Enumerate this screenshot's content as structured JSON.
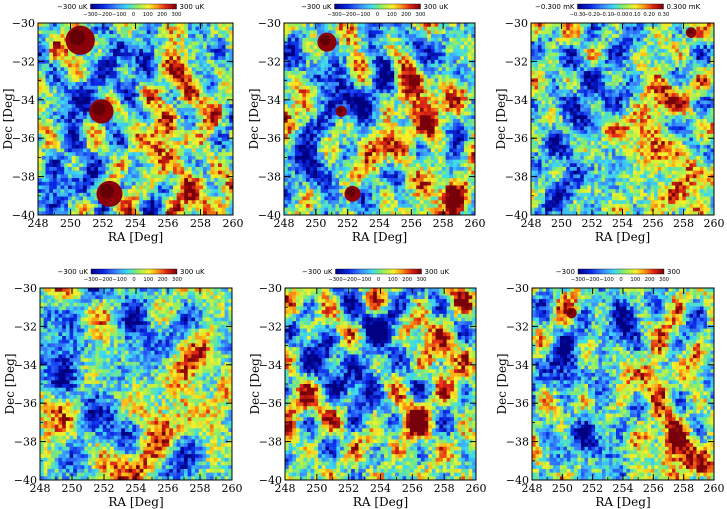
{
  "chart_data": [
    {
      "type": "heatmap",
      "panel": "top-left",
      "xlabel": "RA [Deg]",
      "ylabel": "Dec [Deg]",
      "xlim": [
        248,
        260
      ],
      "ylim": [
        -40,
        -30
      ],
      "xticks": [
        "248",
        "250",
        "252",
        "254",
        "256",
        "258",
        "260"
      ],
      "yticks": [
        "-30",
        "-32",
        "-34",
        "-36",
        "-38",
        "-40"
      ],
      "colorbar": {
        "min_label": "−300 uK",
        "max_label": "300 uK",
        "ticks": [
          "−300",
          "−200",
          "−100",
          "0",
          "100",
          "200",
          "300"
        ],
        "range": [
          -300,
          300
        ],
        "unit": "uK"
      },
      "point_sources": [
        {
          "ra": 250.6,
          "dec": -30.9,
          "size": 0.9
        },
        {
          "ra": 251.9,
          "dec": -34.6,
          "size": 0.75
        },
        {
          "ra": 252.4,
          "dec": -38.9,
          "size": 0.8
        }
      ],
      "seed": 11,
      "cold_regions": [
        [
          251,
          -34
        ],
        [
          254,
          -32
        ],
        [
          250,
          -38
        ]
      ],
      "hot_regions": [
        [
          256,
          -36
        ],
        [
          258,
          -39
        ],
        [
          256,
          -33
        ]
      ]
    },
    {
      "type": "heatmap",
      "panel": "top-middle",
      "xlabel": "RA [Deg]",
      "ylabel": "Dec [Deg]",
      "xlim": [
        248,
        260
      ],
      "ylim": [
        -40,
        -30
      ],
      "xticks": [
        "248",
        "250",
        "252",
        "254",
        "256",
        "258",
        "260"
      ],
      "yticks": [
        "-30",
        "-32",
        "-34",
        "-36",
        "-38",
        "-40"
      ],
      "colorbar": {
        "min_label": "−300 uK",
        "max_label": "300 uK",
        "ticks": [
          "−300",
          "−200",
          "−100",
          "0",
          "100",
          "200",
          "300"
        ],
        "range": [
          -300,
          300
        ],
        "unit": "uK"
      },
      "point_sources": [
        {
          "ra": 250.7,
          "dec": -31.0,
          "size": 0.6
        },
        {
          "ra": 251.6,
          "dec": -34.6,
          "size": 0.35
        },
        {
          "ra": 252.3,
          "dec": -38.9,
          "size": 0.5
        }
      ],
      "seed": 23,
      "cold_regions": [
        [
          251,
          -34
        ],
        [
          254,
          -32
        ],
        [
          250,
          -38
        ]
      ],
      "hot_regions": [
        [
          256,
          -36
        ],
        [
          258,
          -39
        ],
        [
          256,
          -33
        ]
      ]
    },
    {
      "type": "heatmap",
      "panel": "top-right",
      "xlabel": "RA [Deg]",
      "ylabel": "Dec [Deg]",
      "xlim": [
        248,
        260
      ],
      "ylim": [
        -40,
        -30
      ],
      "xticks": [
        "248",
        "250",
        "252",
        "254",
        "256",
        "258",
        "260"
      ],
      "yticks": [
        "-30",
        "-32",
        "-34",
        "-36",
        "-38",
        "-40"
      ],
      "colorbar": {
        "min_label": "−0.300 mK",
        "max_label": "0.300 mK",
        "ticks": [
          "−0.30",
          "−0.20",
          "−0.10",
          "−0.00",
          "0.10",
          "0.20",
          "0.30"
        ],
        "range": [
          -0.3,
          0.3
        ],
        "unit": "mK"
      },
      "point_sources": [
        {
          "ra": 258.5,
          "dec": -30.5,
          "size": 0.35
        }
      ],
      "seed": 37,
      "cold_regions": [
        [
          251,
          -34
        ],
        [
          254,
          -32
        ],
        [
          250,
          -38
        ]
      ],
      "hot_regions": [
        [
          256,
          -36
        ],
        [
          258,
          -39
        ],
        [
          256,
          -33
        ]
      ]
    },
    {
      "type": "heatmap",
      "panel": "bottom-left",
      "xlabel": "RA [Deg]",
      "ylabel": "Dec [Deg]",
      "xlim": [
        248,
        260
      ],
      "ylim": [
        -40,
        -30
      ],
      "xticks": [
        "248",
        "250",
        "252",
        "254",
        "256",
        "258",
        "260"
      ],
      "yticks": [
        "-30",
        "-32",
        "-34",
        "-36",
        "-38",
        "-40"
      ],
      "colorbar": {
        "min_label": "−300 uK",
        "max_label": "300 uK",
        "ticks": [
          "−300",
          "−200",
          "−100",
          "0",
          "100",
          "200",
          "300"
        ],
        "range": [
          -300,
          300
        ],
        "unit": "uK"
      },
      "point_sources": [],
      "seed": 51,
      "cold_regions": [
        [
          250,
          -34
        ],
        [
          254,
          -32
        ],
        [
          253,
          -38
        ]
      ],
      "hot_regions": [
        [
          255,
          -37
        ],
        [
          253,
          -39
        ],
        [
          258,
          -34
        ]
      ]
    },
    {
      "type": "heatmap",
      "panel": "bottom-middle",
      "xlabel": "RA [Deg]",
      "ylabel": "Dec [Deg]",
      "xlim": [
        248,
        260
      ],
      "ylim": [
        -40,
        -30
      ],
      "xticks": [
        "248",
        "250",
        "252",
        "254",
        "256",
        "258",
        "260"
      ],
      "yticks": [
        "-30",
        "-32",
        "-34",
        "-36",
        "-38",
        "-40"
      ],
      "colorbar": {
        "min_label": "−300 uK",
        "max_label": "300 uK",
        "ticks": [
          "−300",
          "−200",
          "−100",
          "0",
          "100",
          "200",
          "300"
        ],
        "range": [
          -300,
          300
        ],
        "unit": "uK"
      },
      "point_sources": [],
      "seed": 67,
      "cold_regions": [
        [
          250,
          -34
        ],
        [
          254,
          -32
        ],
        [
          253,
          -35
        ]
      ],
      "hot_regions": [
        [
          256,
          -37
        ],
        [
          249,
          -36
        ],
        [
          258,
          -33
        ]
      ]
    },
    {
      "type": "heatmap",
      "panel": "bottom-right",
      "xlabel": "RA [Deg]",
      "ylabel": "Dec [Deg]",
      "xlim": [
        248,
        260
      ],
      "ylim": [
        -40,
        -30
      ],
      "xticks": [
        "248",
        "250",
        "252",
        "254",
        "256",
        "258",
        "260"
      ],
      "yticks": [
        "-30",
        "-32",
        "-34",
        "-36",
        "-38",
        "-40"
      ],
      "colorbar": {
        "min_label": "−300",
        "max_label": "300",
        "ticks": [
          "−300",
          "−200",
          "−100",
          "0",
          "100",
          "200",
          "300"
        ],
        "range": [
          -300,
          300
        ],
        "unit": ""
      },
      "point_sources": [
        {
          "ra": 250.6,
          "dec": -31.3,
          "size": 0.35
        }
      ],
      "seed": 83,
      "cold_regions": [
        [
          250,
          -34
        ],
        [
          254,
          -32
        ],
        [
          252,
          -38
        ]
      ],
      "hot_regions": [
        [
          257,
          -38
        ],
        [
          256,
          -34
        ],
        [
          258,
          -39
        ]
      ]
    }
  ]
}
